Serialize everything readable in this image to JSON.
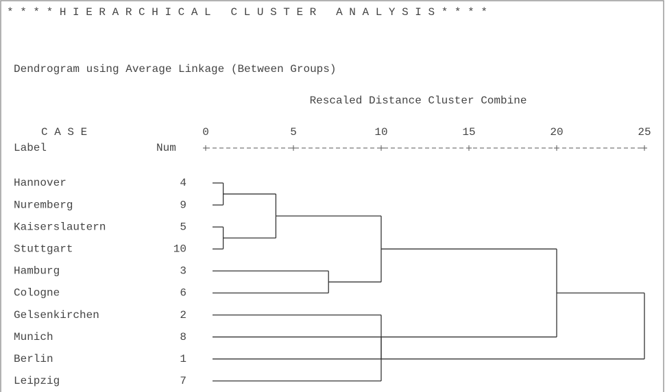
{
  "chart_data": {
    "type": "dendrogram",
    "title": "* * * * H I E R A R C H I C A L   C L U S T E R   A N A L Y S I S * * * *",
    "subtitle": "Dendrogram using Average Linkage (Between Groups)",
    "xlabel": "Rescaled Distance Cluster Combine",
    "case_header": "C A S E",
    "label_header": "Label",
    "num_header": "Num",
    "labels": [
      "Hannover",
      "Nuremberg",
      "Kaiserslautern",
      "Stuttgart",
      "Hamburg",
      "Cologne",
      "Gelsenkirchen",
      "Munich",
      "Berlin",
      "Leipzig"
    ],
    "nums": [
      4,
      9,
      5,
      10,
      3,
      6,
      2,
      8,
      1,
      7
    ],
    "merges": [
      {
        "join": [
          0,
          1
        ],
        "distance": 1
      },
      {
        "join": [
          2,
          3
        ],
        "distance": 1
      },
      {
        "join": [
          10,
          11
        ],
        "distance": 4
      },
      {
        "join": [
          4,
          5
        ],
        "distance": 7
      },
      {
        "join": [
          12,
          13
        ],
        "distance": 10
      },
      {
        "join": [
          7,
          9
        ],
        "distance": 10
      },
      {
        "join": [
          6,
          15
        ],
        "distance": 10
      },
      {
        "join": [
          14,
          16
        ],
        "distance": 20
      },
      {
        "join": [
          17,
          8
        ],
        "distance": 25
      }
    ],
    "xlim": [
      0,
      25
    ],
    "xticks": [
      0,
      5,
      10,
      15,
      20,
      25
    ],
    "color": "#333333"
  }
}
